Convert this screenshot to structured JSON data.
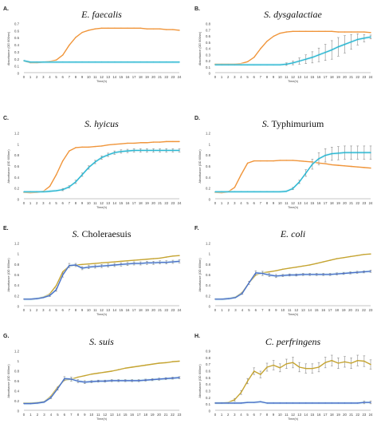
{
  "colors": {
    "test": "#f0953a",
    "ctrl": "#29b6d1",
    "test_alt": "#c5a431",
    "ctrl_alt": "#4a6fc7",
    "baseline": "#b3b3b3",
    "shade": "#d6f3f7"
  },
  "chart_data": [
    {
      "type": "line",
      "letter": "A.",
      "title_italic": "E. faecalis",
      "title_plain": "",
      "xlabel": "Time(h)",
      "ylabel": "Absorbance (OD 600nm)",
      "ylim": [
        0,
        0.7
      ],
      "yticks": [
        "0",
        "0.1",
        "0.2",
        "0.3",
        "0.4",
        "0.5",
        "0.6",
        "0.7"
      ],
      "x": [
        0,
        1,
        2,
        3,
        4,
        5,
        6,
        7,
        8,
        9,
        10,
        11,
        12,
        13,
        14,
        15,
        16,
        17,
        18,
        19,
        20,
        21,
        22,
        23,
        24
      ],
      "series": [
        {
          "style": "test",
          "errors": false,
          "values": [
            0.18,
            0.15,
            0.15,
            0.16,
            0.17,
            0.19,
            0.26,
            0.4,
            0.51,
            0.58,
            0.61,
            0.63,
            0.64,
            0.64,
            0.64,
            0.64,
            0.64,
            0.64,
            0.64,
            0.63,
            0.63,
            0.63,
            0.62,
            0.62,
            0.61
          ]
        },
        {
          "style": "ctrl",
          "errors": false,
          "values": [
            0.18,
            0.16,
            0.16,
            0.16,
            0.16,
            0.16,
            0.16,
            0.16,
            0.16,
            0.16,
            0.16,
            0.16,
            0.16,
            0.16,
            0.16,
            0.16,
            0.16,
            0.16,
            0.16,
            0.16,
            0.16,
            0.16,
            0.16,
            0.16,
            0.16
          ]
        }
      ]
    },
    {
      "type": "line",
      "letter": "B.",
      "title_italic": "S. dysgalactiae",
      "title_plain": "",
      "xlabel": "Time(h)",
      "ylabel": "Absorbance (OD 600nm)",
      "ylim": [
        0,
        0.8
      ],
      "yticks": [
        "0",
        "0.1",
        "0.2",
        "0.3",
        "0.4",
        "0.5",
        "0.6",
        "0.7",
        "0.8"
      ],
      "x": [
        0,
        1,
        2,
        3,
        4,
        5,
        6,
        7,
        8,
        9,
        10,
        11,
        12,
        13,
        14,
        15,
        16,
        17,
        18,
        19,
        20,
        21,
        22,
        23,
        24
      ],
      "series": [
        {
          "style": "test",
          "errors": false,
          "values": [
            0.15,
            0.15,
            0.15,
            0.15,
            0.16,
            0.19,
            0.26,
            0.4,
            0.52,
            0.6,
            0.65,
            0.67,
            0.68,
            0.68,
            0.68,
            0.68,
            0.68,
            0.68,
            0.68,
            0.67,
            0.67,
            0.67,
            0.67,
            0.67,
            0.66
          ]
        },
        {
          "style": "ctrl",
          "errors": true,
          "values": [
            0.14,
            0.14,
            0.14,
            0.14,
            0.14,
            0.14,
            0.14,
            0.14,
            0.14,
            0.14,
            0.14,
            0.15,
            0.17,
            0.2,
            0.23,
            0.26,
            0.3,
            0.34,
            0.38,
            0.43,
            0.47,
            0.51,
            0.55,
            0.57,
            0.59
          ],
          "err": [
            0.01,
            0.01,
            0.01,
            0.01,
            0.01,
            0.01,
            0.01,
            0.01,
            0.01,
            0.01,
            0.01,
            0.02,
            0.03,
            0.05,
            0.07,
            0.09,
            0.11,
            0.13,
            0.15,
            0.15,
            0.14,
            0.12,
            0.09,
            0.06,
            0.03
          ]
        }
      ]
    },
    {
      "type": "line",
      "letter": "C.",
      "title_italic": "S. hyicus",
      "title_plain": "",
      "xlabel": "Time(h)",
      "ylabel": "Absorbance (OD 600nm)",
      "ylim": [
        0,
        1.2
      ],
      "yticks": [
        "0",
        "0.2",
        "0.4",
        "0.6",
        "0.8",
        "1",
        "1.2"
      ],
      "x": [
        0,
        1,
        2,
        3,
        4,
        5,
        6,
        7,
        8,
        9,
        10,
        11,
        12,
        13,
        14,
        15,
        16,
        17,
        18,
        19,
        20,
        21,
        22,
        23,
        24
      ],
      "series": [
        {
          "style": "test",
          "errors": false,
          "values": [
            0.13,
            0.12,
            0.13,
            0.15,
            0.24,
            0.45,
            0.7,
            0.88,
            0.94,
            0.95,
            0.95,
            0.96,
            0.97,
            0.99,
            1.0,
            1.01,
            1.02,
            1.02,
            1.03,
            1.03,
            1.04,
            1.04,
            1.05,
            1.05,
            1.05
          ]
        },
        {
          "style": "ctrl",
          "errors": true,
          "values": [
            0.14,
            0.14,
            0.14,
            0.14,
            0.15,
            0.16,
            0.18,
            0.23,
            0.32,
            0.45,
            0.58,
            0.68,
            0.76,
            0.81,
            0.85,
            0.87,
            0.88,
            0.89,
            0.89,
            0.89,
            0.89,
            0.89,
            0.89,
            0.89,
            0.89
          ],
          "err": [
            0.01,
            0.01,
            0.01,
            0.01,
            0.01,
            0.01,
            0.02,
            0.02,
            0.03,
            0.03,
            0.03,
            0.03,
            0.03,
            0.03,
            0.03,
            0.03,
            0.03,
            0.03,
            0.03,
            0.03,
            0.03,
            0.03,
            0.03,
            0.03,
            0.03
          ]
        }
      ]
    },
    {
      "type": "line",
      "letter": "D.",
      "title_italic": "S.",
      "title_plain": " Typhimurium",
      "xlabel": "Time(h)",
      "ylabel": "Absorbance (OD 600nm)",
      "ylim": [
        0,
        1.2
      ],
      "yticks": [
        "0",
        "0.2",
        "0.4",
        "0.6",
        "0.8",
        "1",
        "1.2"
      ],
      "x": [
        0,
        1,
        2,
        3,
        4,
        5,
        6,
        7,
        8,
        9,
        10,
        11,
        12,
        13,
        14,
        15,
        16,
        17,
        18,
        19,
        20,
        21,
        22,
        23,
        24
      ],
      "series": [
        {
          "style": "test",
          "errors": false,
          "values": [
            0.13,
            0.12,
            0.14,
            0.22,
            0.45,
            0.66,
            0.7,
            0.7,
            0.7,
            0.7,
            0.71,
            0.71,
            0.71,
            0.7,
            0.69,
            0.68,
            0.66,
            0.65,
            0.63,
            0.62,
            0.61,
            0.6,
            0.59,
            0.58,
            0.57
          ]
        },
        {
          "style": "ctrl",
          "errors": true,
          "values": [
            0.14,
            0.14,
            0.14,
            0.14,
            0.14,
            0.14,
            0.14,
            0.14,
            0.14,
            0.14,
            0.14,
            0.15,
            0.2,
            0.32,
            0.48,
            0.64,
            0.74,
            0.8,
            0.83,
            0.84,
            0.85,
            0.85,
            0.85,
            0.85,
            0.85
          ],
          "err": [
            0.01,
            0.01,
            0.01,
            0.01,
            0.01,
            0.01,
            0.01,
            0.01,
            0.01,
            0.01,
            0.01,
            0.01,
            0.02,
            0.03,
            0.06,
            0.09,
            0.11,
            0.12,
            0.12,
            0.12,
            0.12,
            0.12,
            0.12,
            0.12,
            0.12
          ]
        }
      ]
    },
    {
      "type": "line",
      "letter": "E.",
      "title_italic": "S.",
      "title_plain": " Choleraesuis",
      "xlabel": "Time(h)",
      "ylabel": "Absorbance (OD 600nm)",
      "ylim": [
        0,
        1.2
      ],
      "yticks": [
        "0",
        "0.2",
        "0.4",
        "0.6",
        "0.8",
        "1",
        "1.2"
      ],
      "x": [
        0,
        1,
        2,
        3,
        4,
        5,
        6,
        7,
        8,
        9,
        10,
        11,
        12,
        13,
        14,
        15,
        16,
        17,
        18,
        19,
        20,
        21,
        22,
        23,
        24
      ],
      "series": [
        {
          "style": "test_alt",
          "errors": false,
          "values": [
            0.14,
            0.14,
            0.15,
            0.18,
            0.24,
            0.4,
            0.66,
            0.77,
            0.79,
            0.8,
            0.81,
            0.82,
            0.83,
            0.84,
            0.85,
            0.86,
            0.87,
            0.88,
            0.89,
            0.9,
            0.91,
            0.92,
            0.94,
            0.96,
            0.97
          ]
        },
        {
          "style": "ctrl_alt",
          "errors": true,
          "values": [
            0.14,
            0.14,
            0.15,
            0.17,
            0.21,
            0.32,
            0.6,
            0.78,
            0.79,
            0.73,
            0.75,
            0.76,
            0.77,
            0.78,
            0.79,
            0.8,
            0.81,
            0.82,
            0.82,
            0.83,
            0.83,
            0.84,
            0.84,
            0.85,
            0.86
          ],
          "err": [
            0.01,
            0.01,
            0.01,
            0.01,
            0.02,
            0.03,
            0.04,
            0.04,
            0.03,
            0.03,
            0.03,
            0.03,
            0.03,
            0.03,
            0.03,
            0.03,
            0.03,
            0.03,
            0.03,
            0.03,
            0.03,
            0.03,
            0.03,
            0.03,
            0.03
          ]
        }
      ]
    },
    {
      "type": "line",
      "letter": "F.",
      "title_italic": "E. coli",
      "title_plain": "",
      "xlabel": "Time(h)",
      "ylabel": "Absorbance (OD 600nm)",
      "ylim": [
        0,
        1.2
      ],
      "yticks": [
        "0",
        "0.2",
        "0.4",
        "0.6",
        "0.8",
        "1",
        "1.2"
      ],
      "x": [
        0,
        1,
        2,
        3,
        4,
        5,
        6,
        7,
        8,
        9,
        10,
        11,
        12,
        13,
        14,
        15,
        16,
        17,
        18,
        19,
        20,
        21,
        22,
        23
      ],
      "series": [
        {
          "style": "test_alt",
          "errors": false,
          "values": [
            0.14,
            0.14,
            0.15,
            0.18,
            0.27,
            0.45,
            0.6,
            0.64,
            0.66,
            0.68,
            0.71,
            0.73,
            0.75,
            0.77,
            0.79,
            0.82,
            0.85,
            0.88,
            0.91,
            0.93,
            0.95,
            0.97,
            0.99,
            1.0
          ]
        },
        {
          "style": "ctrl_alt",
          "errors": true,
          "values": [
            0.14,
            0.14,
            0.15,
            0.17,
            0.25,
            0.45,
            0.64,
            0.63,
            0.6,
            0.58,
            0.59,
            0.6,
            0.6,
            0.61,
            0.61,
            0.61,
            0.61,
            0.61,
            0.62,
            0.63,
            0.64,
            0.65,
            0.66,
            0.67
          ],
          "err": [
            0.01,
            0.01,
            0.01,
            0.01,
            0.02,
            0.03,
            0.04,
            0.04,
            0.03,
            0.03,
            0.02,
            0.02,
            0.02,
            0.02,
            0.02,
            0.02,
            0.02,
            0.02,
            0.02,
            0.02,
            0.02,
            0.02,
            0.02,
            0.02
          ]
        }
      ]
    },
    {
      "type": "line",
      "letter": "G.",
      "title_italic": "S. suis",
      "title_plain": "",
      "xlabel": "Time(h)",
      "ylabel": "Absorbance (OD 600nm)",
      "ylim": [
        0,
        1.2
      ],
      "yticks": [
        "0",
        "0.2",
        "0.4",
        "0.6",
        "0.8",
        "1",
        "1.2"
      ],
      "x": [
        0,
        1,
        2,
        3,
        4,
        5,
        6,
        7,
        8,
        9,
        10,
        11,
        12,
        13,
        14,
        15,
        16,
        17,
        18,
        19,
        20,
        21,
        22,
        23
      ],
      "series": [
        {
          "style": "test_alt",
          "errors": false,
          "values": [
            0.16,
            0.16,
            0.17,
            0.19,
            0.3,
            0.48,
            0.62,
            0.64,
            0.68,
            0.71,
            0.74,
            0.76,
            0.78,
            0.8,
            0.83,
            0.86,
            0.88,
            0.9,
            0.92,
            0.94,
            0.96,
            0.97,
            0.99,
            1.0
          ]
        },
        {
          "style": "ctrl_alt",
          "errors": true,
          "values": [
            0.15,
            0.15,
            0.16,
            0.18,
            0.27,
            0.45,
            0.65,
            0.64,
            0.6,
            0.58,
            0.59,
            0.6,
            0.6,
            0.61,
            0.61,
            0.61,
            0.61,
            0.61,
            0.62,
            0.63,
            0.64,
            0.65,
            0.66,
            0.67
          ],
          "err": [
            0.01,
            0.01,
            0.01,
            0.01,
            0.02,
            0.03,
            0.04,
            0.04,
            0.03,
            0.03,
            0.02,
            0.02,
            0.02,
            0.02,
            0.02,
            0.02,
            0.02,
            0.02,
            0.02,
            0.02,
            0.02,
            0.02,
            0.02,
            0.02
          ]
        }
      ]
    },
    {
      "type": "line",
      "letter": "H.",
      "title_italic": "C. perfringens",
      "title_plain": "",
      "xlabel": "Time(h)",
      "ylabel": "Absorbance (OD 600nm)",
      "ylim": [
        0,
        0.9
      ],
      "yticks": [
        "0",
        "0.1",
        "0.2",
        "0.3",
        "0.4",
        "0.5",
        "0.6",
        "0.7",
        "0.8",
        "0.9"
      ],
      "x": [
        0,
        1,
        2,
        3,
        4,
        5,
        6,
        7,
        8,
        9,
        10,
        11,
        12,
        13,
        14,
        15,
        16,
        17,
        18,
        19,
        20,
        21,
        22,
        23,
        24
      ],
      "series": [
        {
          "style": "test_alt",
          "errors": true,
          "values": [
            0.12,
            0.12,
            0.13,
            0.17,
            0.28,
            0.45,
            0.6,
            0.55,
            0.66,
            0.69,
            0.65,
            0.71,
            0.73,
            0.66,
            0.64,
            0.64,
            0.66,
            0.73,
            0.76,
            0.72,
            0.74,
            0.72,
            0.76,
            0.75,
            0.7
          ],
          "err": [
            0.01,
            0.01,
            0.01,
            0.02,
            0.03,
            0.04,
            0.05,
            0.05,
            0.06,
            0.07,
            0.06,
            0.07,
            0.08,
            0.07,
            0.07,
            0.07,
            0.07,
            0.08,
            0.08,
            0.08,
            0.08,
            0.08,
            0.08,
            0.08,
            0.07
          ]
        },
        {
          "style": "ctrl_alt",
          "errors": true,
          "values": [
            0.12,
            0.12,
            0.12,
            0.12,
            0.12,
            0.13,
            0.13,
            0.14,
            0.12,
            0.12,
            0.12,
            0.12,
            0.12,
            0.12,
            0.12,
            0.12,
            0.12,
            0.12,
            0.12,
            0.12,
            0.12,
            0.12,
            0.12,
            0.13,
            0.13
          ],
          "err": [
            0.01,
            0.01,
            0.01,
            0.01,
            0.01,
            0.01,
            0.01,
            0.01,
            0.01,
            0.01,
            0.01,
            0.01,
            0.01,
            0.01,
            0.01,
            0.01,
            0.01,
            0.01,
            0.01,
            0.01,
            0.01,
            0.01,
            0.01,
            0.02,
            0.02
          ]
        }
      ]
    }
  ]
}
